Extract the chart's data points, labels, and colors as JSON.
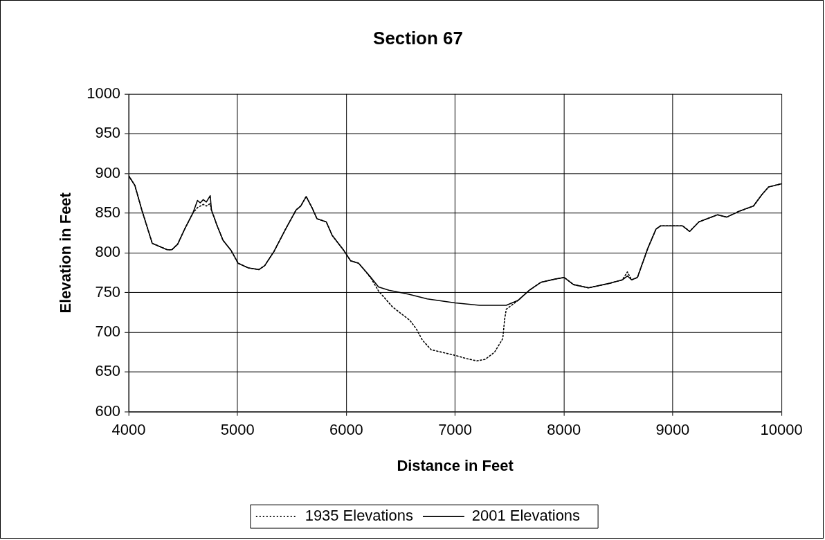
{
  "chart_data": {
    "type": "line",
    "title": "Section 67",
    "xlabel": "Distance in Feet",
    "ylabel": "Elevation in Feet",
    "xlim": [
      4000,
      10000
    ],
    "xticks": [
      4000,
      5000,
      6000,
      7000,
      8000,
      9000,
      10000
    ],
    "ylim": [
      600,
      1000
    ],
    "yticks": [
      600,
      650,
      700,
      750,
      800,
      850,
      900,
      950,
      1000
    ],
    "grid": true,
    "legend": "bottom",
    "marker": "none",
    "series": [
      {
        "name": "1935 Elevations",
        "color": "#000000",
        "line_style": "dotted",
        "x": [
          4000,
          4056,
          4120,
          4216,
          4354,
          4397,
          4450,
          4514,
          4589,
          4632,
          4685,
          4713,
          4749,
          4760,
          4813,
          4866,
          4941,
          5005,
          5100,
          5197,
          5250,
          5336,
          5442,
          5538,
          5581,
          5631,
          5688,
          5730,
          5816,
          5870,
          5977,
          6040,
          6113,
          6157,
          6232,
          6296,
          6424,
          6584,
          6640,
          6700,
          6780,
          7000,
          7100,
          7200,
          7278,
          7363,
          7438,
          7455,
          7470,
          7577,
          7683,
          7790,
          7918,
          8003,
          8089,
          8227,
          8430,
          8537,
          8584,
          8622,
          8676,
          8772,
          8847,
          8889,
          9092,
          9156,
          9241,
          9412,
          9497,
          9604,
          9743,
          9818,
          9882,
          10000
        ],
        "values": [
          897,
          885,
          854,
          812,
          804,
          804,
          811,
          830,
          850,
          857,
          861,
          859,
          862,
          854,
          834,
          816,
          803,
          787,
          781,
          779,
          784,
          802,
          830,
          854,
          859,
          871,
          856,
          843,
          839,
          822,
          803,
          790,
          787,
          780,
          767,
          752,
          732,
          715,
          705,
          690,
          678,
          671,
          667,
          664,
          666,
          675,
          692,
          716,
          729,
          740,
          753,
          763,
          767,
          769,
          760,
          756,
          762,
          766,
          776,
          766,
          769,
          806,
          830,
          834,
          834,
          827,
          839,
          848,
          845,
          852,
          859,
          873,
          883,
          887
        ]
      },
      {
        "name": "2001 Elevations",
        "color": "#000000",
        "line_style": "solid",
        "x": [
          4000,
          4056,
          4120,
          4216,
          4354,
          4397,
          4450,
          4514,
          4589,
          4632,
          4657,
          4685,
          4713,
          4749,
          4760,
          4813,
          4866,
          4941,
          5005,
          5100,
          5197,
          5250,
          5336,
          5442,
          5538,
          5581,
          5631,
          5688,
          5730,
          5816,
          5870,
          5977,
          6040,
          6113,
          6157,
          6221,
          6296,
          6392,
          6574,
          6744,
          7000,
          7225,
          7470,
          7577,
          7683,
          7790,
          7918,
          8003,
          8089,
          8227,
          8430,
          8537,
          8584,
          8622,
          8676,
          8772,
          8847,
          8889,
          9092,
          9156,
          9241,
          9412,
          9497,
          9604,
          9743,
          9818,
          9882,
          10000
        ],
        "values": [
          897,
          885,
          854,
          812,
          804,
          804,
          811,
          830,
          850,
          866,
          863,
          867,
          864,
          872,
          854,
          834,
          816,
          803,
          787,
          781,
          779,
          784,
          802,
          830,
          854,
          859,
          871,
          856,
          843,
          839,
          822,
          803,
          790,
          787,
          780,
          770,
          757,
          753,
          748,
          742,
          737,
          734,
          734,
          740,
          753,
          763,
          767,
          769,
          760,
          756,
          762,
          766,
          771,
          766,
          769,
          806,
          830,
          834,
          834,
          827,
          839,
          848,
          845,
          852,
          859,
          873,
          883,
          887
        ]
      }
    ]
  }
}
